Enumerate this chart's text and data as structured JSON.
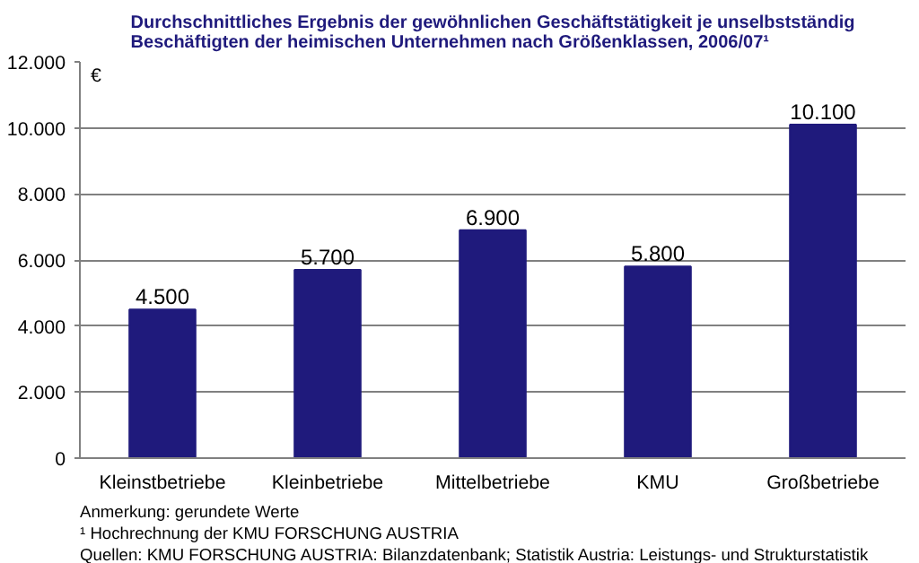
{
  "chart_data": {
    "type": "bar",
    "title": "Durchschnittliches Ergebnis der gewöhnlichen Geschäftstätigkeit je unselbstständig\nBeschäftigten der heimischen Unternehmen nach Größenklassen, 2006/07¹",
    "ylabel": "€",
    "categories": [
      "Kleinstbetriebe",
      "Kleinbetriebe",
      "Mittelbetriebe",
      "KMU",
      "Großbetriebe"
    ],
    "values": [
      4500,
      5700,
      6900,
      5800,
      10100
    ],
    "value_labels": [
      "4.500",
      "5.700",
      "6.900",
      "5.800",
      "10.100"
    ],
    "color": "#1f1a7c",
    "ylim": [
      0,
      12000
    ],
    "yticks": [
      {
        "value": 0,
        "label": "0"
      },
      {
        "value": 2000,
        "label": "2.000"
      },
      {
        "value": 4000,
        "label": "4.000"
      },
      {
        "value": 6000,
        "label": "6.000"
      },
      {
        "value": 8000,
        "label": "8.000"
      },
      {
        "value": 10000,
        "label": "10.000"
      },
      {
        "value": 12000,
        "label": "12.000"
      }
    ],
    "grid": "y",
    "annotations": [
      "Anmerkung: gerundete Werte",
      "¹ Hochrechnung der KMU FORSCHUNG AUSTRIA",
      "Quellen: KMU FORSCHUNG AUSTRIA: Bilanzdatenbank; Statistik Austria: Leistungs- und Strukturstatistik"
    ]
  }
}
